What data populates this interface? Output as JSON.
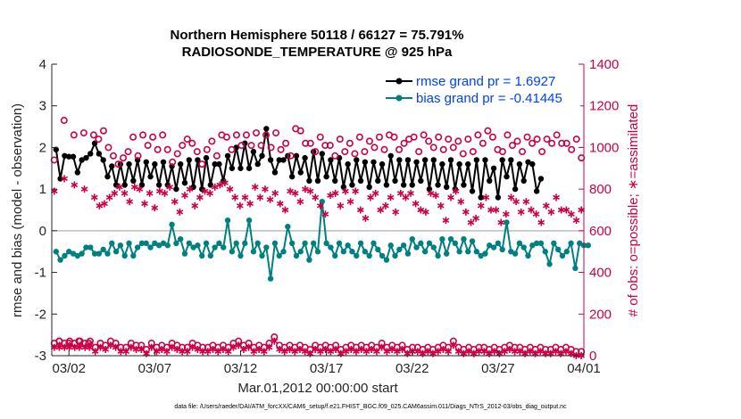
{
  "colors": {
    "left_axis": "#262626",
    "right_axis": "#cc0044",
    "rmse": "#000000",
    "bias": "#008080",
    "obs": "#cc0044",
    "zero_line": "#b0b0b0",
    "legend_text": "#0040ff"
  },
  "chart_data": {
    "type": "line",
    "title": "Northern Hemisphere 50118 / 66127 = 75.791%",
    "subtitle": "RADIOSONDE_TEMPERATURE @ 925 hPa",
    "xlabel": "Mar.01,2012 00:00:00 start",
    "ylabel_left": "rmse and bias (model - observation)",
    "ylabel_right": "# of obs: o=possible; ∗=assimilated",
    "footnote": "data file: /Users/raeder/DAI/ATM_forcXX/CAM6_setup/f.e21.FHIST_BGC.f09_025.CAM6assim.011/Diags_NTrS_2012-03/obs_diag_output.nc",
    "xlim": [
      1,
      32
    ],
    "ylim_left": [
      -3,
      4
    ],
    "ylim_right": [
      0,
      1400
    ],
    "x_ticks": [
      2,
      7,
      12,
      17,
      22,
      27,
      32
    ],
    "x_tick_labels": [
      "03/02",
      "03/07",
      "03/12",
      "03/17",
      "03/22",
      "03/27",
      "04/01"
    ],
    "y_left_ticks": [
      -3,
      -2,
      -1,
      0,
      1,
      2,
      3,
      4
    ],
    "y_left_tick_labels": [
      "-3",
      "-2",
      "-1",
      "0",
      "1",
      "2",
      "3",
      "4"
    ],
    "y_right_ticks": [
      0,
      200,
      400,
      600,
      800,
      1000,
      1200,
      1400
    ],
    "y_right_tick_labels": [
      "0",
      "200",
      "400",
      "600",
      "800",
      "1000",
      "1200",
      "1400"
    ],
    "legend": {
      "placement": "top-right",
      "entries": [
        "rmse grand pr = 1.6927",
        "bias grand pr = -0.41445"
      ]
    },
    "x_start": 1.25,
    "x_step": 0.25,
    "series": [
      {
        "name": "rmse grand pr = 1.6927",
        "axis": "left",
        "values": [
          1.95,
          1.25,
          1.8,
          1.78,
          1.78,
          1.4,
          1.7,
          1.75,
          1.85,
          2.1,
          1.85,
          1.7,
          1.3,
          1.55,
          1.1,
          1.6,
          1.1,
          1.6,
          1.2,
          1.7,
          1.1,
          1.65,
          1.3,
          1.6,
          1.1,
          1.65,
          1.1,
          1.55,
          1.0,
          1.6,
          1.15,
          1.7,
          1.05,
          1.7,
          1.0,
          1.75,
          1.1,
          1.6,
          1.6,
          1.2,
          1.8,
          1.5,
          2.0,
          1.5,
          2.1,
          1.5,
          1.9,
          1.6,
          1.8,
          2.45,
          1.7,
          1.4,
          1.7,
          1.7,
          1.8,
          1.3,
          1.8,
          1.4,
          1.75,
          1.2,
          1.9,
          1.2,
          1.85,
          1.3,
          1.7,
          1.2,
          1.75,
          1.05,
          1.6,
          1.1,
          1.7,
          1.2,
          1.65,
          1.05,
          1.65,
          1.2,
          1.6,
          1.1,
          1.8,
          1.2,
          1.7,
          1.1,
          1.7,
          1.1,
          1.65,
          1.2,
          1.7,
          1.0,
          1.7,
          1.1,
          1.6,
          1.05,
          1.7,
          1.0,
          1.6,
          1.1,
          1.6,
          0.95,
          1.7,
          0.8,
          1.7,
          1.2,
          1.5,
          0.8,
          1.7,
          1.3,
          1.7,
          1.0,
          1.6,
          1.2,
          1.65,
          1.6,
          0.95,
          1.25
        ]
      },
      {
        "name": "bias grand pr = -0.41445",
        "axis": "left",
        "values": [
          -0.5,
          -0.7,
          -0.6,
          -0.5,
          -0.55,
          -0.6,
          -0.55,
          -0.4,
          -0.4,
          -0.55,
          -0.55,
          -0.45,
          -0.55,
          -0.3,
          -0.5,
          -0.35,
          -0.6,
          -0.3,
          -0.6,
          -0.4,
          -0.3,
          -0.3,
          -0.4,
          -0.3,
          -0.35,
          -0.3,
          -0.35,
          0.15,
          -0.3,
          -0.2,
          -0.55,
          -0.3,
          -0.4,
          -0.35,
          -0.6,
          -0.3,
          -0.6,
          -0.4,
          -0.3,
          -0.4,
          0.25,
          -0.5,
          -0.3,
          -0.6,
          -0.3,
          0.25,
          -0.5,
          -0.3,
          -0.6,
          -0.4,
          -1.15,
          -0.3,
          -0.6,
          -0.5,
          0.1,
          -0.3,
          -0.6,
          -0.5,
          -0.3,
          -0.7,
          -0.3,
          -0.5,
          0.7,
          -0.3,
          -0.4,
          -0.6,
          -0.3,
          -0.5,
          -0.35,
          -0.5,
          -0.6,
          -0.3,
          -0.5,
          -0.6,
          -0.3,
          -0.45,
          -0.6,
          -0.7,
          -0.35,
          -0.6,
          -0.45,
          -0.35,
          -0.55,
          -0.2,
          -0.4,
          -0.3,
          -0.5,
          -0.3,
          -0.4,
          -0.6,
          -0.2,
          -0.55,
          -0.2,
          -0.3,
          -0.5,
          -0.2,
          -0.5,
          -0.25,
          -0.5,
          -0.6,
          -0.55,
          -0.35,
          -0.4,
          -0.3,
          -0.45,
          0.2,
          -0.5,
          -0.55,
          -0.3,
          -0.4,
          -0.6,
          -0.35,
          -0.3,
          -0.3,
          -0.5,
          -0.8,
          -0.3,
          -0.45,
          -0.6,
          -0.5,
          -0.3,
          -0.9,
          -0.3,
          -0.35,
          -0.35
        ]
      },
      {
        "name": "possible",
        "axis": "right",
        "marker": "circle",
        "values": [
          940,
          70,
          1130,
          60,
          1060,
          70,
          1070,
          60,
          1060,
          1040,
          1080,
          1000,
          960,
          920,
          950,
          980,
          1050,
          960,
          1060,
          1010,
          1050,
          990,
          1060,
          990,
          930,
          970,
          1010,
          1040,
          1020,
          980,
          920,
          990,
          1030,
          960,
          1060,
          1050,
          990,
          1060,
          1010,
          1060,
          1010,
          1070,
          1010,
          1060,
          1000,
          1070,
          990,
          1020,
          960,
          1090,
          1080,
          1020,
          1020,
          980,
          1050,
          1010,
          1010,
          960,
          1040,
          980,
          1020,
          970,
          1050,
          980,
          1030,
          1000,
          1050,
          990,
          1060,
          1050,
          990,
          1020,
          1040,
          1050,
          980,
          1060,
          1030,
          1000,
          1050,
          990,
          1040,
          1000,
          1030,
          970,
          1040,
          980,
          1060,
          1020,
          1080,
          1050,
          990,
          980,
          1060,
          1010,
          1030,
          980,
          1050,
          1020,
          1040,
          980,
          1040,
          1020,
          1060,
          1020,
          1020,
          990,
          1040,
          950
        ]
      },
      {
        "name": "assimilated",
        "axis": "right",
        "marker": "star",
        "values": [
          790,
          40,
          850,
          40,
          820,
          40,
          800,
          40,
          760,
          720,
          730,
          760,
          780,
          810,
          780,
          740,
          810,
          800,
          730,
          780,
          710,
          790,
          780,
          810,
          740,
          690,
          770,
          800,
          720,
          760,
          790,
          780,
          810,
          820,
          830,
          800,
          760,
          720,
          760,
          730,
          810,
          760,
          800,
          750,
          780,
          730,
          700,
          790,
          780,
          740,
          800,
          790,
          760,
          720,
          680,
          770,
          780,
          720,
          790,
          740,
          790,
          700,
          660,
          760,
          780,
          700,
          720,
          760,
          690,
          780,
          760,
          780,
          730,
          700,
          690,
          780,
          770,
          720,
          650,
          760,
          790,
          740,
          690,
          640,
          660,
          720,
          760,
          700,
          700,
          640,
          680,
          760,
          740,
          690,
          740,
          700,
          680,
          640,
          720,
          690,
          760,
          700,
          700,
          680,
          650,
          700
        ]
      },
      {
        "name": "possible-bottom",
        "axis": "right",
        "marker": "circle",
        "values": [
          60,
          70,
          60,
          70,
          60,
          70,
          60,
          70,
          40,
          60,
          50,
          70,
          60,
          40,
          40,
          60,
          50,
          50,
          30,
          60,
          40,
          50,
          40,
          60,
          50,
          40,
          40,
          60,
          50,
          40,
          40,
          50,
          40,
          50,
          40,
          60,
          70,
          50,
          60,
          40,
          50,
          40,
          60,
          90,
          50,
          40,
          50,
          40,
          50,
          40,
          30,
          50,
          40,
          50,
          40,
          50,
          30,
          40,
          50,
          40,
          50,
          40,
          50,
          40,
          60,
          40,
          50,
          40,
          50,
          30,
          40,
          40,
          30,
          40,
          30,
          40,
          50,
          40,
          70,
          40,
          30,
          40,
          30,
          40,
          40,
          30,
          40,
          30,
          40,
          50,
          40,
          40,
          30,
          40,
          30,
          40,
          30,
          30,
          40,
          30,
          40,
          30,
          20,
          20
        ]
      },
      {
        "name": "assimilated-bottom",
        "axis": "right",
        "marker": "star",
        "values": [
          40,
          50,
          40,
          50,
          40,
          50,
          40,
          50,
          20,
          40,
          30,
          50,
          40,
          20,
          20,
          40,
          30,
          30,
          10,
          40,
          20,
          30,
          20,
          40,
          30,
          20,
          20,
          40,
          30,
          20,
          20,
          30,
          20,
          30,
          20,
          40,
          50,
          30,
          40,
          20,
          30,
          20,
          40,
          70,
          30,
          20,
          30,
          20,
          30,
          20,
          10,
          30,
          20,
          30,
          20,
          30,
          10,
          20,
          30,
          20,
          30,
          20,
          30,
          20,
          40,
          20,
          30,
          20,
          30,
          10,
          20,
          20,
          10,
          20,
          10,
          20,
          30,
          20,
          50,
          20,
          10,
          20,
          10,
          20,
          20,
          10,
          20,
          10,
          20,
          30,
          20,
          20,
          10,
          20,
          10,
          20,
          10,
          10,
          20,
          10,
          20,
          10,
          0,
          0
        ]
      }
    ]
  }
}
